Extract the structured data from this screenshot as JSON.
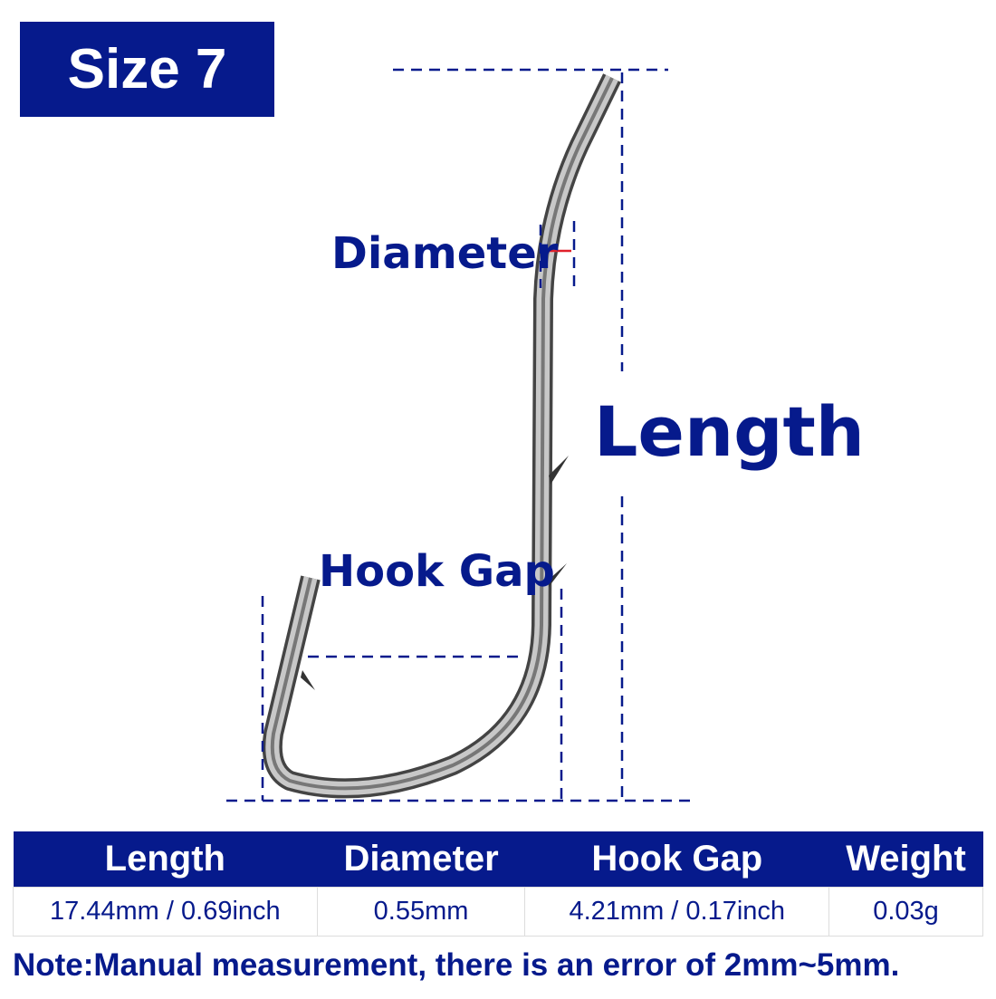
{
  "badge": "Size 7",
  "labels": {
    "diameter": "Diameter",
    "length": "Length",
    "hook_gap": "Hook Gap"
  },
  "table": {
    "headers": [
      "Length",
      "Diameter",
      "Hook Gap",
      "Weight"
    ],
    "values": [
      "17.44mm / 0.69inch",
      "0.55mm",
      "4.21mm / 0.17inch",
      "0.03g"
    ]
  },
  "note": "Note:Manual measurement, there is an error of 2mm~5mm.",
  "colors": {
    "navy": "#061a8c",
    "diameter_marker": "#e0202a"
  }
}
